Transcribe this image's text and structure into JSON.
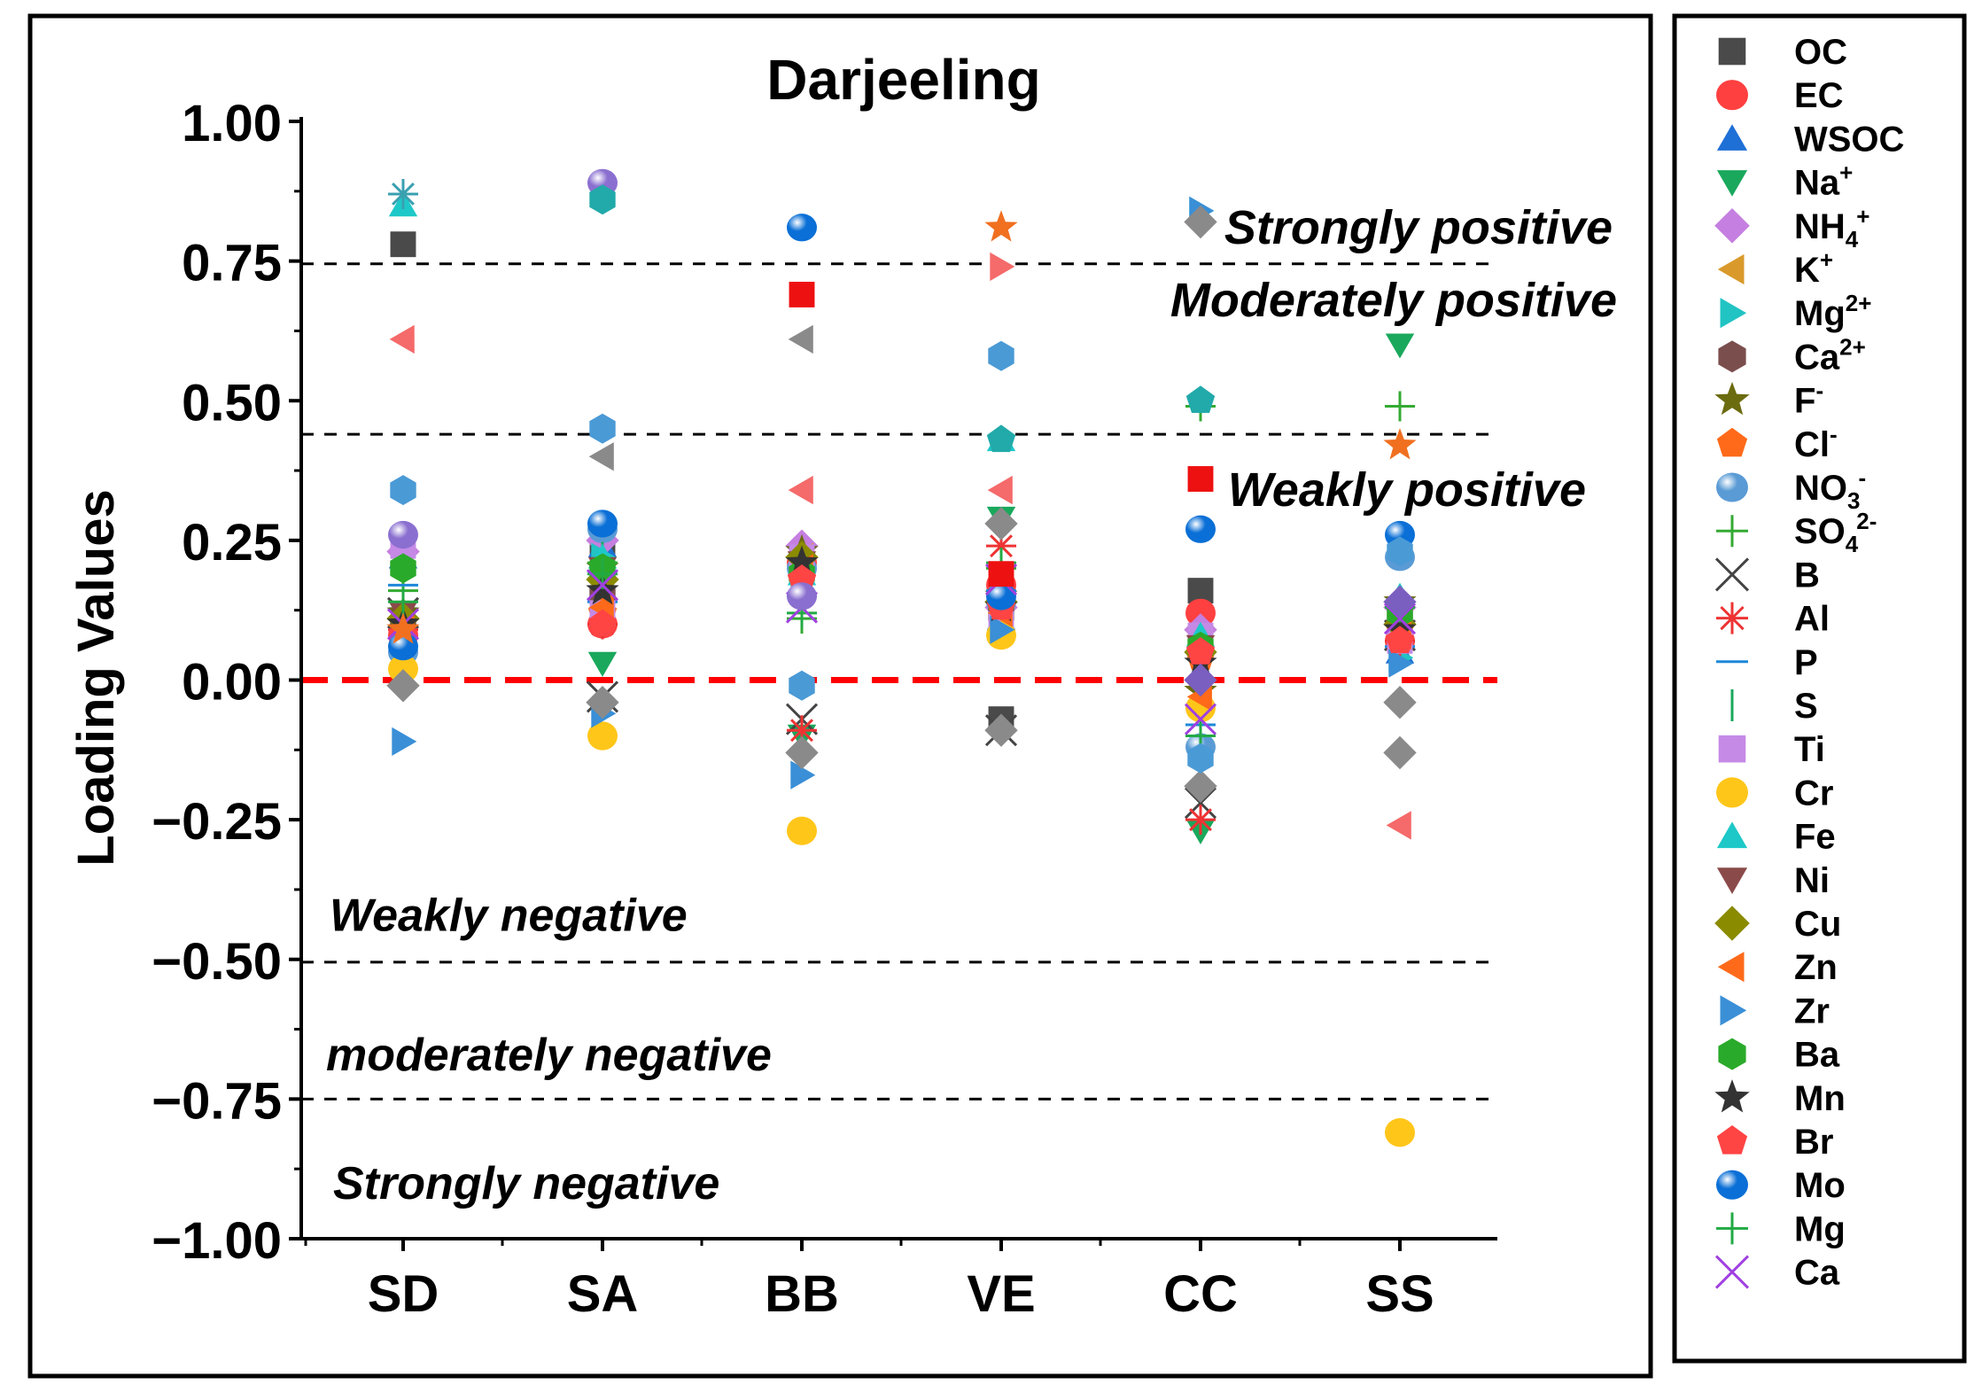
{
  "chart_data": {
    "type": "scatter",
    "title": "Darjeeling",
    "xlabel": "",
    "ylabel": "Loading Values",
    "categories": [
      "SD",
      "SA",
      "BB",
      "VE",
      "CC",
      "SS"
    ],
    "ylim": [
      -1.0,
      1.0
    ],
    "y_ticks": [
      "1.00",
      "0.75",
      "0.50",
      "0.25",
      "0.00",
      "−0.25",
      "−0.50",
      "−0.75",
      "−1.00"
    ],
    "y_tick_values": [
      1.0,
      0.75,
      0.5,
      0.25,
      0.0,
      -0.25,
      -0.5,
      -0.75,
      -1.0
    ],
    "reference_lines": [
      {
        "y": 0.745,
        "style": "dashed",
        "color": "#000000"
      },
      {
        "y": 0.44,
        "style": "dashed",
        "color": "#000000"
      },
      {
        "y": 0.0,
        "style": "dashed",
        "color": "#ff0000"
      },
      {
        "y": -0.505,
        "style": "dashed",
        "color": "#000000"
      },
      {
        "y": -0.75,
        "style": "dashed",
        "color": "#000000"
      }
    ],
    "annotations": [
      {
        "text": "Strongly positive",
        "y": 0.81
      },
      {
        "text": "Moderately positive",
        "y": 0.68
      },
      {
        "text": "Weakly positive",
        "y": 0.34
      },
      {
        "text": "Weakly negative",
        "y": -0.42
      },
      {
        "text": "moderately negative",
        "y": -0.67
      },
      {
        "text": "Strongly negative",
        "y": -0.9
      }
    ],
    "series": [
      {
        "name": "OC",
        "label": "OC",
        "sup": "",
        "sub": "",
        "marker": "square",
        "color": "#4a4a4a",
        "values": [
          0.78,
          0.24,
          0.2,
          -0.07,
          0.16,
          0.09
        ]
      },
      {
        "name": "EC",
        "label": "EC",
        "sup": "",
        "sub": "",
        "marker": "circle",
        "color": "#ff4040",
        "values": [
          0.08,
          0.1,
          0.21,
          0.17,
          0.12,
          0.07
        ]
      },
      {
        "name": "WSOC",
        "label": "WSOC",
        "sup": "",
        "sub": "",
        "marker": "triangle-up",
        "color": "#1e6fd6",
        "values": [
          0.22,
          0.24,
          0.22,
          0.11,
          0.07,
          0.05
        ]
      },
      {
        "name": "Na+",
        "label": "Na",
        "sup": "+",
        "sub": "",
        "marker": "triangle-down",
        "color": "#1aa85c",
        "values": [
          0.11,
          0.03,
          -0.1,
          0.29,
          -0.27,
          0.6
        ]
      },
      {
        "name": "NH4+",
        "label": "NH",
        "sup": "+",
        "sub": "4",
        "marker": "diamond",
        "color": "#c57fe0",
        "values": [
          0.23,
          0.25,
          0.24,
          0.13,
          0.09,
          0.13
        ]
      },
      {
        "name": "K+",
        "label": "K",
        "sup": "+",
        "sub": "",
        "marker": "triangle-left",
        "color": "#d99a2b",
        "values": [
          0.1,
          0.18,
          0.22,
          0.14,
          -0.04,
          0.1
        ]
      },
      {
        "name": "Mg2+",
        "label": "Mg",
        "sup": "2+",
        "sub": "",
        "marker": "triangle-right",
        "color": "#22c3c3",
        "values": [
          0.05,
          0.22,
          0.19,
          0.12,
          0.84,
          0.04
        ]
      },
      {
        "name": "Ca2+",
        "label": "Ca",
        "sup": "2+",
        "sub": "",
        "marker": "hexagon",
        "color": "#7b4e4e",
        "values": [
          0.1,
          0.15,
          0.21,
          0.12,
          0.05,
          0.11
        ]
      },
      {
        "name": "F-",
        "label": "F",
        "sup": "-",
        "sub": "",
        "marker": "star",
        "color": "#6b6b10",
        "values": [
          0.12,
          0.2,
          0.23,
          0.15,
          -0.02,
          0.14
        ]
      },
      {
        "name": "Cl-",
        "label": "Cl",
        "sup": "-",
        "sub": "",
        "marker": "pentagon",
        "color": "#ff6a1a",
        "values": [
          0.07,
          0.12,
          0.2,
          0.14,
          0.04,
          0.09
        ]
      },
      {
        "name": "NO3-",
        "label": "NO",
        "sup": "-",
        "sub": "3",
        "marker": "sphere",
        "color": "#5a9bd5",
        "values": [
          0.05,
          0.27,
          0.2,
          0.14,
          -0.12,
          0.22
        ]
      },
      {
        "name": "SO42-",
        "label": "SO",
        "sup": "2-",
        "sub": "4",
        "marker": "plus",
        "color": "#33aa33",
        "values": [
          0.16,
          0.21,
          0.11,
          0.2,
          0.49,
          0.49
        ]
      },
      {
        "name": "B",
        "label": "B",
        "sup": "",
        "sub": "",
        "marker": "x",
        "color": "#444444",
        "values": [
          0.12,
          -0.03,
          -0.07,
          -0.09,
          -0.22,
          0.08
        ]
      },
      {
        "name": "Al",
        "label": "Al",
        "sup": "",
        "sub": "",
        "marker": "asterisk",
        "color": "#ee3333",
        "values": [
          0.09,
          0.1,
          -0.09,
          0.24,
          -0.25,
          0.07
        ]
      },
      {
        "name": "P",
        "label": "P",
        "sup": "",
        "sub": "",
        "marker": "hline",
        "color": "#1e88d9",
        "values": [
          0.17,
          0.14,
          0.15,
          0.16,
          -0.08,
          0.06
        ]
      },
      {
        "name": "S",
        "label": "S",
        "sup": "",
        "sub": "",
        "marker": "vline",
        "color": "#1aa85c",
        "values": [
          0.13,
          0.22,
          0.17,
          0.18,
          -0.06,
          0.12
        ]
      },
      {
        "name": "Ti",
        "label": "Ti",
        "sup": "",
        "sub": "",
        "marker": "square",
        "color": "#c58ae6",
        "values": [
          0.24,
          0.12,
          0.22,
          0.1,
          0.08,
          0.07
        ]
      },
      {
        "name": "Cr",
        "label": "Cr",
        "sup": "",
        "sub": "",
        "marker": "circle",
        "color": "#ffc61a",
        "values": [
          0.02,
          -0.1,
          -0.27,
          0.08,
          -0.05,
          -0.81
        ]
      },
      {
        "name": "Fe",
        "label": "Fe",
        "sup": "",
        "sub": "",
        "marker": "triangle-up",
        "color": "#1ec8c8",
        "values": [
          0.85,
          0.22,
          0.19,
          0.43,
          0.08,
          0.15
        ]
      },
      {
        "name": "Ni",
        "label": "Ni",
        "sup": "",
        "sub": "",
        "marker": "triangle-down",
        "color": "#8b4a4a",
        "values": [
          0.12,
          0.2,
          0.21,
          0.13,
          0.06,
          0.11
        ]
      },
      {
        "name": "Cu",
        "label": "Cu",
        "sup": "",
        "sub": "",
        "marker": "diamond",
        "color": "#8b8b00",
        "values": [
          0.11,
          0.18,
          0.22,
          0.14,
          0.05,
          0.1
        ]
      },
      {
        "name": "Zn",
        "label": "Zn",
        "sup": "",
        "sub": "",
        "marker": "triangle-left",
        "color": "#ff6a1a",
        "values": [
          0.09,
          0.13,
          0.2,
          0.12,
          -0.03,
          0.08
        ]
      },
      {
        "name": "Zr",
        "label": "Zr",
        "sup": "",
        "sub": "",
        "marker": "triangle-right",
        "color": "#3a8fd6",
        "values": [
          -0.11,
          -0.06,
          -0.17,
          0.09,
          0.84,
          0.03
        ]
      },
      {
        "name": "Ba",
        "label": "Ba",
        "sup": "",
        "sub": "",
        "marker": "hexagon",
        "color": "#2aaa2a",
        "values": [
          0.2,
          0.2,
          0.19,
          0.14,
          0.06,
          0.12
        ]
      },
      {
        "name": "Mn",
        "label": "Mn",
        "sup": "",
        "sub": "",
        "marker": "star",
        "color": "#333333",
        "values": [
          0.1,
          0.16,
          0.21,
          0.13,
          0.03,
          0.09
        ]
      },
      {
        "name": "Br",
        "label": "Br",
        "sup": "",
        "sub": "",
        "marker": "pentagon",
        "color": "#ff4444",
        "values": [
          0.08,
          0.1,
          0.18,
          0.13,
          0.05,
          0.07
        ]
      },
      {
        "name": "Mo",
        "label": "Mo",
        "sup": "",
        "sub": "",
        "marker": "sphere",
        "color": "#0a6fd6",
        "values": [
          0.06,
          0.28,
          0.81,
          0.15,
          0.27,
          0.26
        ]
      },
      {
        "name": "Mg",
        "label": "Mg",
        "sup": "",
        "sub": "",
        "marker": "plus",
        "color": "#22aa44",
        "values": [
          0.14,
          0.19,
          0.12,
          0.21,
          -0.1,
          0.13
        ]
      },
      {
        "name": "Ca",
        "label": "Ca",
        "sup": "",
        "sub": "",
        "marker": "x",
        "color": "#a040e0",
        "values": [
          0.1,
          0.17,
          0.13,
          0.18,
          -0.07,
          0.11
        ]
      }
    ],
    "extra_points": [
      {
        "category": "SD",
        "y": 0.61,
        "marker": "triangle-left",
        "color": "#f56a6a"
      },
      {
        "category": "SD",
        "y": 0.87,
        "marker": "asterisk",
        "color": "#3aa0b0"
      },
      {
        "category": "SD",
        "y": 0.34,
        "marker": "hexagon",
        "color": "#4a9ad6"
      },
      {
        "category": "SD",
        "y": 0.26,
        "marker": "sphere",
        "color": "#8a6fd0"
      },
      {
        "category": "SD",
        "y": 0.09,
        "marker": "star",
        "color": "#f07020"
      },
      {
        "category": "SD",
        "y": -0.01,
        "marker": "diamond",
        "color": "#8a8a8a"
      },
      {
        "category": "SA",
        "y": 0.89,
        "marker": "sphere",
        "color": "#8a6fd0"
      },
      {
        "category": "SA",
        "y": 0.86,
        "marker": "hexagon",
        "color": "#22aaaa"
      },
      {
        "category": "SA",
        "y": 0.45,
        "marker": "hexagon",
        "color": "#4a9ad6"
      },
      {
        "category": "SA",
        "y": 0.4,
        "marker": "triangle-left",
        "color": "#8a8a8a"
      },
      {
        "category": "SA",
        "y": -0.04,
        "marker": "diamond",
        "color": "#8a8a8a"
      },
      {
        "category": "BB",
        "y": 0.69,
        "marker": "square",
        "color": "#ee1111"
      },
      {
        "category": "BB",
        "y": 0.61,
        "marker": "triangle-left",
        "color": "#8a8a8a"
      },
      {
        "category": "BB",
        "y": 0.34,
        "marker": "triangle-left",
        "color": "#f56a6a"
      },
      {
        "category": "BB",
        "y": 0.15,
        "marker": "sphere",
        "color": "#8a6fd0"
      },
      {
        "category": "BB",
        "y": -0.01,
        "marker": "hexagon",
        "color": "#4a9ad6"
      },
      {
        "category": "BB",
        "y": -0.13,
        "marker": "diamond",
        "color": "#8a8a8a"
      },
      {
        "category": "VE",
        "y": 0.81,
        "marker": "star",
        "color": "#f07020"
      },
      {
        "category": "VE",
        "y": 0.74,
        "marker": "triangle-right",
        "color": "#f56a6a"
      },
      {
        "category": "VE",
        "y": 0.58,
        "marker": "hexagon",
        "color": "#4a9ad6"
      },
      {
        "category": "VE",
        "y": 0.43,
        "marker": "pentagon",
        "color": "#22aaaa"
      },
      {
        "category": "VE",
        "y": 0.34,
        "marker": "triangle-left",
        "color": "#f56a6a"
      },
      {
        "category": "VE",
        "y": 0.28,
        "marker": "diamond",
        "color": "#8a8a8a"
      },
      {
        "category": "VE",
        "y": 0.19,
        "marker": "square",
        "color": "#ee1111"
      },
      {
        "category": "VE",
        "y": -0.09,
        "marker": "diamond",
        "color": "#8a8a8a"
      },
      {
        "category": "CC",
        "y": 0.82,
        "marker": "diamond",
        "color": "#8a8a8a"
      },
      {
        "category": "CC",
        "y": 0.5,
        "marker": "pentagon",
        "color": "#22aaaa"
      },
      {
        "category": "CC",
        "y": 0.36,
        "marker": "square",
        "color": "#ee1111"
      },
      {
        "category": "CC",
        "y": 0.0,
        "marker": "diamond",
        "color": "#7a5fc0"
      },
      {
        "category": "CC",
        "y": -0.19,
        "marker": "diamond",
        "color": "#8a8a8a"
      },
      {
        "category": "CC",
        "y": -0.14,
        "marker": "hexagon",
        "color": "#4a9ad6"
      },
      {
        "category": "SS",
        "y": 0.42,
        "marker": "star",
        "color": "#f07020"
      },
      {
        "category": "SS",
        "y": 0.14,
        "marker": "diamond",
        "color": "#7a5fc0"
      },
      {
        "category": "SS",
        "y": -0.04,
        "marker": "diamond",
        "color": "#8a8a8a"
      },
      {
        "category": "SS",
        "y": -0.13,
        "marker": "diamond",
        "color": "#8a8a8a"
      },
      {
        "category": "SS",
        "y": -0.26,
        "marker": "triangle-left",
        "color": "#f56a6a"
      },
      {
        "category": "SS",
        "y": 0.23,
        "marker": "hexagon",
        "color": "#4a9ad6"
      }
    ]
  }
}
